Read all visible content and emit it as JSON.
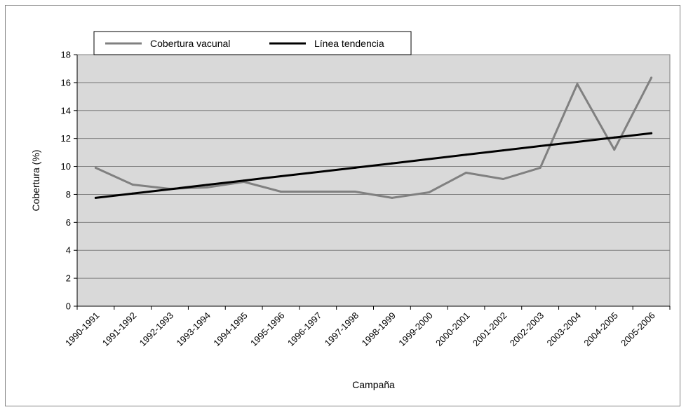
{
  "chart_data": {
    "type": "line",
    "title": "",
    "xlabel": "Campaña",
    "ylabel": "Cobertura (%)",
    "ylim": [
      0,
      18
    ],
    "yticks": [
      0,
      2,
      4,
      6,
      8,
      10,
      12,
      14,
      16,
      18
    ],
    "categories": [
      "1990-1991",
      "1991-1992",
      "1992-1993",
      "1993-1994",
      "1994-1995",
      "1995-1996",
      "1996-1997",
      "1997-1998",
      "1998-1999",
      "1999-2000",
      "2000-2001",
      "2001-2002",
      "2002-2003",
      "2003-2004",
      "2004-2005",
      "2005-2006"
    ],
    "grid": true,
    "legend_position": "top-left",
    "plot_background": "#d9d9d9",
    "series": [
      {
        "name": "Cobertura vacunal",
        "color": "#808080",
        "values": [
          9.9,
          8.7,
          8.4,
          8.5,
          8.9,
          8.2,
          8.2,
          8.2,
          7.75,
          8.15,
          9.55,
          9.1,
          9.9,
          15.9,
          11.2,
          16.35
        ]
      },
      {
        "name": "Línea tendencia",
        "color": "#000000",
        "values": [
          7.75,
          8.06,
          8.37,
          8.68,
          8.99,
          9.3,
          9.6,
          9.91,
          10.22,
          10.53,
          10.84,
          11.15,
          11.46,
          11.76,
          12.07,
          12.38
        ]
      }
    ]
  }
}
